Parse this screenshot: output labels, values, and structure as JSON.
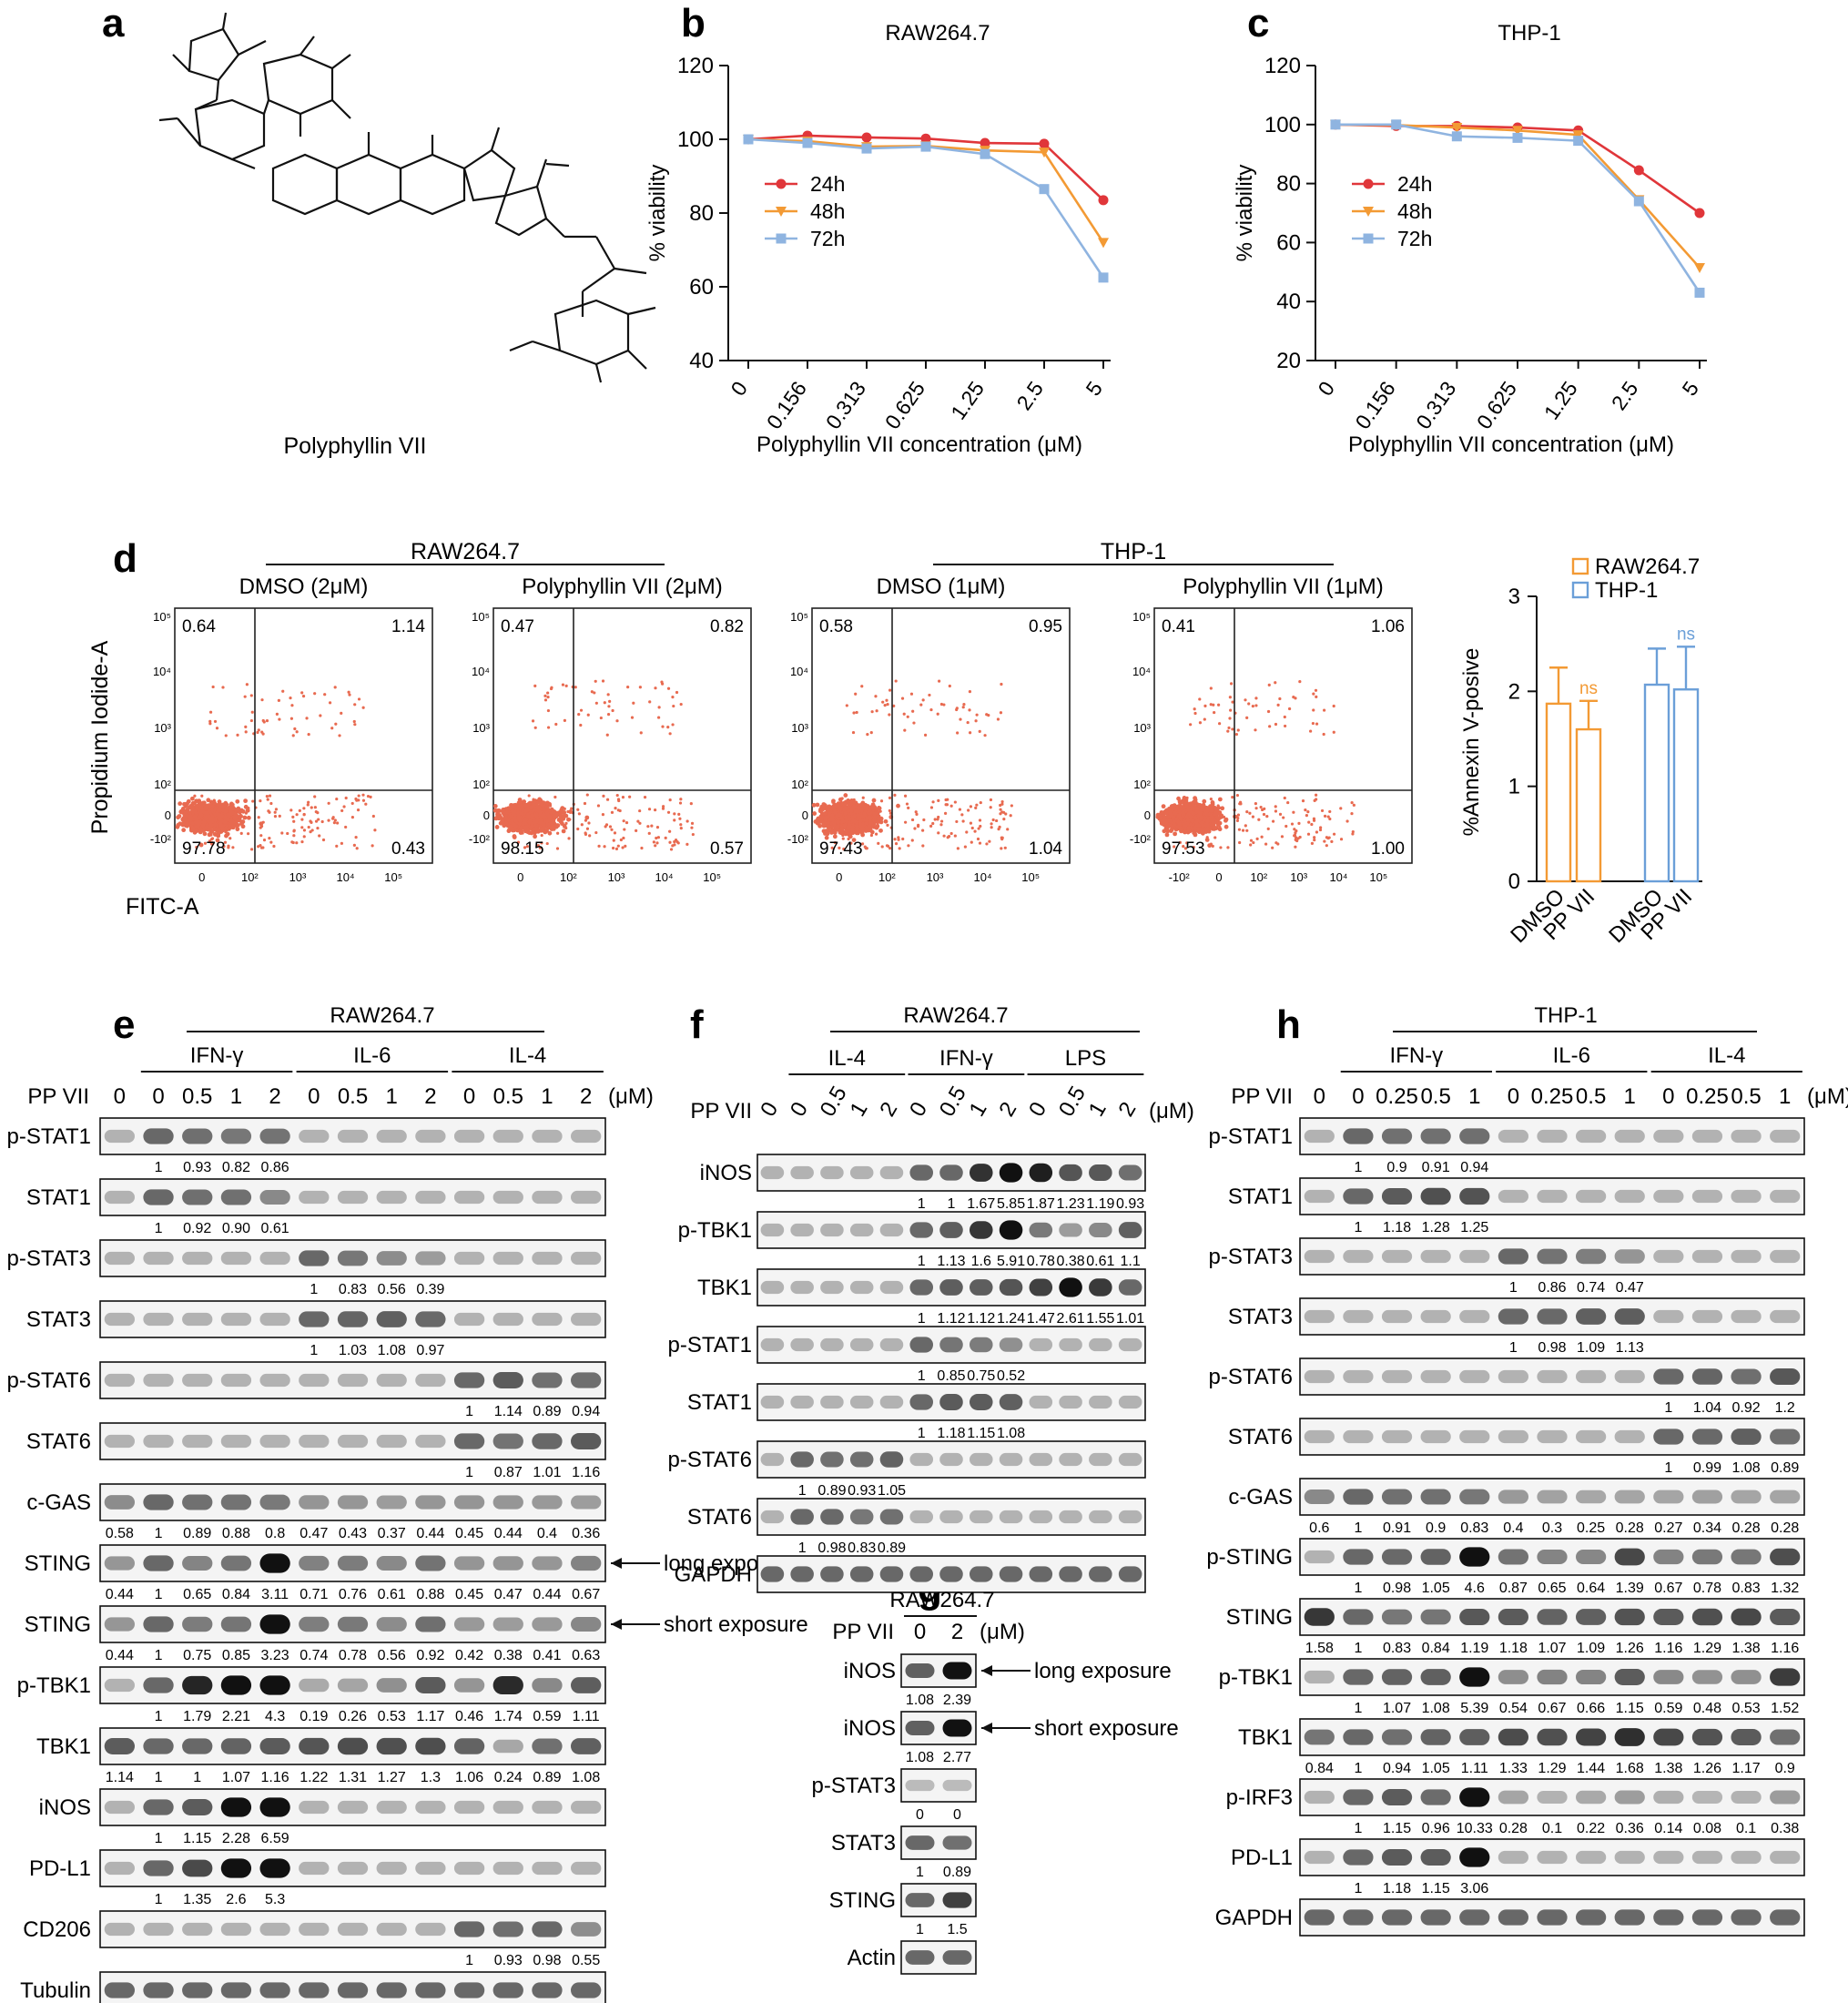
{
  "panels": {
    "a": "a",
    "b": "b",
    "c": "c",
    "d": "d",
    "e": "e",
    "f": "f",
    "g": "g",
    "h": "h"
  },
  "panel_a": {
    "compound_label": "Polyphyllin VII"
  },
  "colors": {
    "c24": "#e0363a",
    "c48": "#f39a34",
    "c72": "#8fb4e0",
    "raw": "#f39a34",
    "thp": "#6b9fd8",
    "dot": "#e86a50"
  },
  "chart_data": [
    {
      "type": "line",
      "title": "RAW264.7",
      "xlabel": "Polyphyllin VII concentration (μM)",
      "ylabel": "% viability",
      "categories": [
        "0",
        "0.156",
        "0.313",
        "0.625",
        "1.25",
        "2.5",
        "5"
      ],
      "ylim": [
        40,
        120
      ],
      "yticks": [
        "40",
        "60",
        "80",
        "100",
        "120"
      ],
      "series": [
        {
          "name": "24h",
          "values": [
            100,
            101,
            100.5,
            100.2,
            99,
            98.8,
            83.5
          ]
        },
        {
          "name": "48h",
          "values": [
            100,
            99.5,
            98,
            98.2,
            97,
            96.5,
            72
          ]
        },
        {
          "name": "72h",
          "values": [
            100,
            99,
            97.5,
            98,
            96,
            86.5,
            62.5
          ]
        }
      ]
    },
    {
      "type": "line",
      "title": "THP-1",
      "xlabel": "Polyphyllin VII concentration (μM)",
      "ylabel": "% viability",
      "categories": [
        "0",
        "0.156",
        "0.313",
        "0.625",
        "1.25",
        "2.5",
        "5"
      ],
      "ylim": [
        20,
        120
      ],
      "yticks": [
        "20",
        "40",
        "60",
        "80",
        "100",
        "120"
      ],
      "series": [
        {
          "name": "24h",
          "values": [
            100,
            99.5,
            99.5,
            99,
            98,
            84.5,
            70
          ]
        },
        {
          "name": "48h",
          "values": [
            100,
            99.8,
            99,
            98,
            96.5,
            74.5,
            51.5
          ]
        },
        {
          "name": "72h",
          "values": [
            100,
            100,
            96,
            95.5,
            94.5,
            74,
            43
          ]
        }
      ]
    },
    {
      "type": "bar",
      "ylabel": "%Annexin V-posive",
      "categories": [
        "DMSO",
        "PP VII",
        "DMSO",
        "PP VII"
      ],
      "ylim": [
        0,
        3
      ],
      "yticks": [
        "0",
        "1",
        "2",
        "3"
      ],
      "series": [
        {
          "name": "RAW264.7",
          "values": [
            1.87,
            1.6,
            null,
            null
          ],
          "errors": [
            0.38,
            0.3,
            null,
            null
          ],
          "sig": [
            null,
            "ns",
            null,
            null
          ]
        },
        {
          "name": "THP-1",
          "values": [
            null,
            null,
            2.07,
            2.02
          ],
          "errors": [
            null,
            null,
            0.38,
            0.45
          ],
          "sig": [
            null,
            null,
            null,
            "ns"
          ]
        }
      ]
    }
  ],
  "flow": {
    "y_label": "Propidium Iodide-A",
    "x_label": "FITC-A",
    "groups": [
      {
        "name": "RAW264.7"
      },
      {
        "name": "THP-1"
      }
    ],
    "plots": [
      {
        "title": "DMSO (2μM)",
        "ul": "0.64",
        "ur": "1.14",
        "ll": "97.78",
        "lr": "0.43",
        "xt": [
          "0",
          "10²",
          "10³",
          "10⁴",
          "10⁵"
        ]
      },
      {
        "title": "Polyphyllin VII (2μM)",
        "ul": "0.47",
        "ur": "0.82",
        "ll": "98.15",
        "lr": "0.57",
        "xt": [
          "0",
          "10²",
          "10³",
          "10⁴",
          "10⁵"
        ]
      },
      {
        "title": "DMSO (1μM)",
        "ul": "0.58",
        "ur": "0.95",
        "ll": "97.43",
        "lr": "1.04",
        "xt": [
          "0",
          "10²",
          "10³",
          "10⁴",
          "10⁵"
        ]
      },
      {
        "title": "Polyphyllin VII (1μM)",
        "ul": "0.41",
        "ur": "1.06",
        "ll": "97.53",
        "lr": "1.00",
        "xt": [
          "-10²",
          "0",
          "10²",
          "10³",
          "10⁴",
          "10⁵"
        ]
      }
    ],
    "yticks": [
      "10⁵",
      "10⁴",
      "10³",
      "10²",
      "0",
      "-10²"
    ]
  },
  "blot_e": {
    "cell": "RAW264.7",
    "treat_label": "PP VII",
    "unit": "(μM)",
    "groups": [
      "IFN-γ",
      "IL-6",
      "IL-4"
    ],
    "lanes": [
      "0",
      "0",
      "0.5",
      "1",
      "2",
      "0",
      "0.5",
      "1",
      "2",
      "0",
      "0.5",
      "1",
      "2"
    ],
    "rows": [
      {
        "name": "p-STAT1",
        "q": [
          "",
          "1",
          "0.93",
          "0.82",
          "0.86"
        ]
      },
      {
        "name": "STAT1",
        "q": [
          "",
          "1",
          "0.92",
          "0.90",
          "0.61"
        ]
      },
      {
        "name": "p-STAT3",
        "q": [
          "",
          "",
          "",
          "",
          "",
          "1",
          "0.83",
          "0.56",
          "0.39"
        ]
      },
      {
        "name": "STAT3",
        "q": [
          "",
          "",
          "",
          "",
          "",
          "1",
          "1.03",
          "1.08",
          "0.97"
        ]
      },
      {
        "name": "p-STAT6",
        "q": [
          "",
          "",
          "",
          "",
          "",
          "",
          "",
          "",
          "",
          "1",
          "1.14",
          "0.89",
          "0.94"
        ]
      },
      {
        "name": "STAT6",
        "q": [
          "",
          "",
          "",
          "",
          "",
          "",
          "",
          "",
          "",
          "1",
          "0.87",
          "1.01",
          "1.16"
        ]
      },
      {
        "name": "c-GAS",
        "q": [
          "0.58",
          "1",
          "0.89",
          "0.88",
          "0.8",
          "0.47",
          "0.43",
          "0.37",
          "0.44",
          "0.45",
          "0.44",
          "0.4",
          "0.36"
        ]
      },
      {
        "name": "STING",
        "q": [
          "0.44",
          "1",
          "0.65",
          "0.84",
          "3.11",
          "0.71",
          "0.76",
          "0.61",
          "0.88",
          "0.45",
          "0.47",
          "0.44",
          "0.67"
        ],
        "note": "long exposure"
      },
      {
        "name": "STING",
        "q": [
          "0.44",
          "1",
          "0.75",
          "0.85",
          "3.23",
          "0.74",
          "0.78",
          "0.56",
          "0.92",
          "0.42",
          "0.38",
          "0.41",
          "0.63"
        ],
        "note": "short exposure"
      },
      {
        "name": "p-TBK1",
        "q": [
          "",
          "1",
          "1.79",
          "2.21",
          "4.3",
          "0.19",
          "0.26",
          "0.53",
          "1.17",
          "0.46",
          "1.74",
          "0.59",
          "1.11"
        ]
      },
      {
        "name": "TBK1",
        "q": [
          "1.14",
          "1",
          "1",
          "1.07",
          "1.16",
          "1.22",
          "1.31",
          "1.27",
          "1.3",
          "1.06",
          "0.24",
          "0.89",
          "1.08"
        ]
      },
      {
        "name": "iNOS",
        "q": [
          "",
          "1",
          "1.15",
          "2.28",
          "6.59"
        ]
      },
      {
        "name": "PD-L1",
        "q": [
          "",
          "1",
          "1.35",
          "2.6",
          "5.3"
        ]
      },
      {
        "name": "CD206",
        "q": [
          "",
          "",
          "",
          "",
          "",
          "",
          "",
          "",
          "",
          "1",
          "0.93",
          "0.98",
          "0.55"
        ]
      },
      {
        "name": "Tubulin",
        "q": []
      }
    ]
  },
  "blot_f": {
    "cell": "RAW264.7",
    "treat_label": "PP VII",
    "unit": "(μM)",
    "groups": [
      "IL-4",
      "IFN-γ",
      "LPS"
    ],
    "lanes": [
      "0",
      "0",
      "0.5",
      "1",
      "2",
      "0",
      "0.5",
      "1",
      "2",
      "0",
      "0.5",
      "1",
      "2"
    ],
    "rows": [
      {
        "name": "iNOS",
        "q": [
          "",
          "",
          "",
          "",
          "",
          "1",
          "1",
          "1.67",
          "5.85",
          "1.87",
          "1.23",
          "1.19",
          "0.93"
        ]
      },
      {
        "name": "p-TBK1",
        "q": [
          "",
          "",
          "",
          "",
          "",
          "1",
          "1.13",
          "1.6",
          "5.91",
          "0.78",
          "0.38",
          "0.61",
          "1.1"
        ]
      },
      {
        "name": "TBK1",
        "q": [
          "",
          "",
          "",
          "",
          "",
          "1",
          "1.12",
          "1.12",
          "1.24",
          "1.47",
          "2.61",
          "1.55",
          "1.01"
        ]
      },
      {
        "name": "p-STAT1",
        "q": [
          "",
          "",
          "",
          "",
          "",
          "1",
          "0.85",
          "0.75",
          "0.52"
        ]
      },
      {
        "name": "STAT1",
        "q": [
          "",
          "",
          "",
          "",
          "",
          "1",
          "1.18",
          "1.15",
          "1.08"
        ]
      },
      {
        "name": "p-STAT6",
        "q": [
          "",
          "1",
          "0.89",
          "0.93",
          "1.05"
        ]
      },
      {
        "name": "STAT6",
        "q": [
          "",
          "1",
          "0.98",
          "0.83",
          "0.89"
        ]
      },
      {
        "name": "GAPDH",
        "q": []
      }
    ]
  },
  "blot_g": {
    "cell": "RAW264.7",
    "treat_label": "PP VII",
    "unit": "(μM)",
    "lanes": [
      "0",
      "2"
    ],
    "rows": [
      {
        "name": "iNOS",
        "q": [
          "1.08",
          "2.39"
        ],
        "note": "long exposure"
      },
      {
        "name": "iNOS",
        "q": [
          "1.08",
          "2.77"
        ],
        "note": "short exposure"
      },
      {
        "name": "p-STAT3",
        "q": [
          "0",
          "0"
        ]
      },
      {
        "name": "STAT3",
        "q": [
          "1",
          "0.89"
        ]
      },
      {
        "name": "STING",
        "q": [
          "1",
          "1.5"
        ]
      },
      {
        "name": "Actin",
        "q": []
      }
    ]
  },
  "blot_h": {
    "cell": "THP-1",
    "treat_label": "PP VII",
    "unit": "(μM)",
    "groups": [
      "IFN-γ",
      "IL-6",
      "IL-4"
    ],
    "lanes": [
      "0",
      "0",
      "0.25",
      "0.5",
      "1",
      "0",
      "0.25",
      "0.5",
      "1",
      "0",
      "0.25",
      "0.5",
      "1"
    ],
    "rows": [
      {
        "name": "p-STAT1",
        "q": [
          "",
          "1",
          "0.9",
          "0.91",
          "0.94"
        ]
      },
      {
        "name": "STAT1",
        "q": [
          "",
          "1",
          "1.18",
          "1.28",
          "1.25"
        ]
      },
      {
        "name": "p-STAT3",
        "q": [
          "",
          "",
          "",
          "",
          "",
          "1",
          "0.86",
          "0.74",
          "0.47"
        ]
      },
      {
        "name": "STAT3",
        "q": [
          "",
          "",
          "",
          "",
          "",
          "1",
          "0.98",
          "1.09",
          "1.13"
        ]
      },
      {
        "name": "p-STAT6",
        "q": [
          "",
          "",
          "",
          "",
          "",
          "",
          "",
          "",
          "",
          "1",
          "1.04",
          "0.92",
          "1.2"
        ]
      },
      {
        "name": "STAT6",
        "q": [
          "",
          "",
          "",
          "",
          "",
          "",
          "",
          "",
          "",
          "1",
          "0.99",
          "1.08",
          "0.89"
        ]
      },
      {
        "name": "c-GAS",
        "q": [
          "0.6",
          "1",
          "0.91",
          "0.9",
          "0.83",
          "0.4",
          "0.3",
          "0.25",
          "0.28",
          "0.27",
          "0.34",
          "0.28",
          "0.28"
        ]
      },
      {
        "name": "p-STING",
        "q": [
          "",
          "1",
          "0.98",
          "1.05",
          "4.6",
          "0.87",
          "0.65",
          "0.64",
          "1.39",
          "0.67",
          "0.78",
          "0.83",
          "1.32"
        ]
      },
      {
        "name": "STING",
        "q": [
          "1.58",
          "1",
          "0.83",
          "0.84",
          "1.19",
          "1.18",
          "1.07",
          "1.09",
          "1.26",
          "1.16",
          "1.29",
          "1.38",
          "1.16"
        ]
      },
      {
        "name": "p-TBK1",
        "q": [
          "",
          "1",
          "1.07",
          "1.08",
          "5.39",
          "0.54",
          "0.67",
          "0.66",
          "1.15",
          "0.59",
          "0.48",
          "0.53",
          "1.52"
        ]
      },
      {
        "name": "TBK1",
        "q": [
          "0.84",
          "1",
          "0.94",
          "1.05",
          "1.11",
          "1.33",
          "1.29",
          "1.44",
          "1.68",
          "1.38",
          "1.26",
          "1.17",
          "0.9"
        ]
      },
      {
        "name": "p-IRF3",
        "q": [
          "",
          "1",
          "1.15",
          "0.96",
          "10.33",
          "0.28",
          "0.1",
          "0.22",
          "0.36",
          "0.14",
          "0.08",
          "0.1",
          "0.38"
        ]
      },
      {
        "name": "PD-L1",
        "q": [
          "",
          "1",
          "1.18",
          "1.15",
          "3.06"
        ]
      },
      {
        "name": "GAPDH",
        "q": []
      }
    ]
  }
}
